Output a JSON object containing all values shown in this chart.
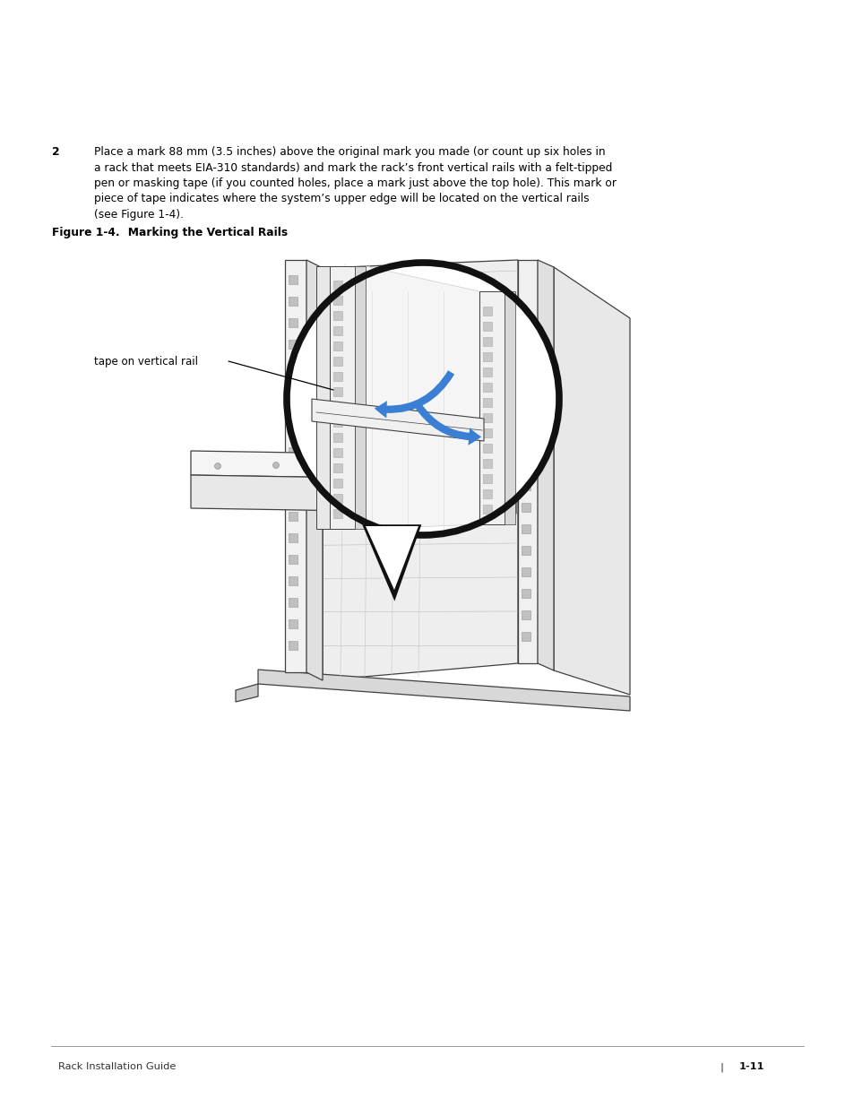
{
  "bg_color": "#ffffff",
  "page_width": 9.54,
  "page_height": 12.35,
  "text_color": "#000000",
  "body_text_line1": "Place a mark 88 mm (3.5 inches) above the original mark you made (or count up six holes in",
  "body_text_line2": "a rack that meets EIA-310 standards) and mark the rack’s front vertical rails with a felt-tipped",
  "body_text_line3": "pen or masking tape (if you counted holes, place a mark just above the top hole). This mark or",
  "body_text_line4": "piece of tape indicates where the system’s upper edge will be located on the vertical rails",
  "body_text_line5": "(see Figure 1-4).",
  "step_number": "2",
  "figure_caption_bold": "Figure 1-4.",
  "figure_caption_rest": "   Marking the Vertical Rails",
  "label_text": "tape on vertical rail",
  "footer_text": "Rack Installation Guide",
  "footer_sep": "|",
  "footer_page": "1-11",
  "arrow_color": "#3a7fd4",
  "line_color": "#000000",
  "dark_gray": "#404040",
  "mid_gray": "#888888",
  "light_gray": "#cccccc",
  "very_light_gray": "#e8e8e8"
}
